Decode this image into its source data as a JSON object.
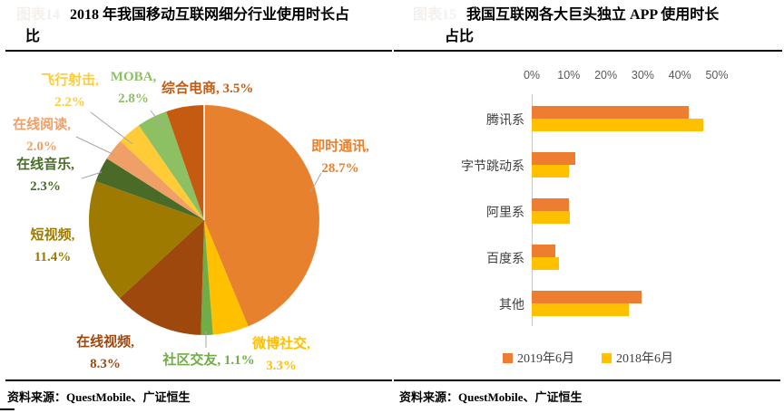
{
  "left_chart": {
    "figure_tag": "图表14",
    "title_line1": "2018 年我国移动互联网细分行业使用时长占",
    "title_line2": "比",
    "source": "资料来源：QuestMobile、广证恒生"
  },
  "right_chart": {
    "figure_tag": "图表15",
    "title_line1": "我国互联网各大巨头独立 APP 使用时长",
    "title_line2": "占比",
    "source": "资料来源：QuestMobile、广证恒生"
  },
  "chart_data": [
    {
      "type": "pie",
      "title": "2018 年我国移动互联网细分行业使用时长占比",
      "unit": "%",
      "slices": [
        {
          "label": "即时通讯",
          "value": 28.7,
          "pct": "28.7%",
          "color": "#E8812E"
        },
        {
          "label": "微博社交",
          "value": 3.3,
          "pct": "3.3%",
          "color": "#FFC000"
        },
        {
          "label": "社区交友",
          "value": 1.1,
          "pct": "1.1%",
          "color": "#70AD47"
        },
        {
          "label": "在线视频",
          "value": 8.3,
          "pct": "8.3%",
          "color": "#9E480E"
        },
        {
          "label": "短视频",
          "value": 11.4,
          "pct": "11.4%",
          "color": "#9E7B00"
        },
        {
          "label": "在线音乐",
          "value": 2.3,
          "pct": "2.3%",
          "color": "#4A6B28"
        },
        {
          "label": "在线阅读",
          "value": 2.0,
          "pct": "2.0%",
          "color": "#F0A066"
        },
        {
          "label": "飞行射击",
          "value": 2.2,
          "pct": "2.2%",
          "color": "#FFCB37"
        },
        {
          "label": "MOBA",
          "value": 2.8,
          "pct": "2.8%",
          "color": "#8DBF63"
        },
        {
          "label": "综合电商",
          "value": 3.5,
          "pct": "3.5%",
          "color": "#C55A11"
        }
      ],
      "layout": {
        "slice_angles_proportional_to_values": true,
        "start_angle": "12 o'clock, clockwise"
      }
    },
    {
      "type": "bar",
      "orientation": "horizontal",
      "title": "我国互联网各大巨头独立 APP 使用时长占比",
      "categories": [
        "腾讯系",
        "字节跳动系",
        "阿里系",
        "百度系",
        "其他"
      ],
      "series": [
        {
          "name": "2019年6月",
          "color": "#ED7D31",
          "values": [
            42.3,
            11.7,
            10.1,
            6.3,
            29.6
          ]
        },
        {
          "name": "2018年6月",
          "color": "#FFC000",
          "values": [
            46.2,
            10.1,
            10.2,
            7.4,
            26.2
          ]
        }
      ],
      "x_ticks": [
        "0%",
        "10%",
        "20%",
        "30%",
        "40%",
        "50%"
      ],
      "xlim": [
        0,
        50
      ],
      "axis_position": "top",
      "legend_position": "bottom",
      "grid": false
    }
  ]
}
